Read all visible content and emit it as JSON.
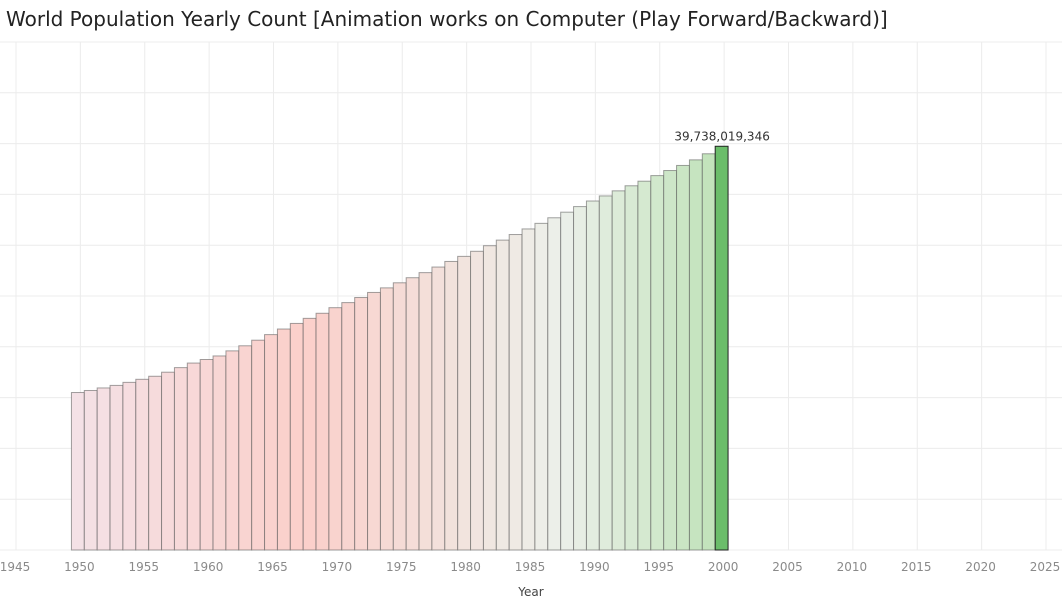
{
  "title": "World Population Yearly Count [Animation works on Computer (Play Forward/Backward)]",
  "chart_data": {
    "type": "bar",
    "xlabel": "Year",
    "ylabel": "",
    "x_ticks": [
      1945,
      1950,
      1955,
      1960,
      1965,
      1970,
      1975,
      1980,
      1985,
      1990,
      1995,
      2000,
      2005,
      2010,
      2015,
      2020,
      2025
    ],
    "xlim": [
      1945,
      2025
    ],
    "ylim": [
      0,
      50000000000
    ],
    "grid": true,
    "categories": [
      1950,
      1951,
      1952,
      1953,
      1954,
      1955,
      1956,
      1957,
      1958,
      1959,
      1960,
      1961,
      1962,
      1963,
      1964,
      1965,
      1966,
      1967,
      1968,
      1969,
      1970,
      1971,
      1972,
      1973,
      1974,
      1975,
      1976,
      1977,
      1978,
      1979,
      1980,
      1981,
      1982,
      1983,
      1984,
      1985,
      1986,
      1987,
      1988,
      1989,
      1990,
      1991,
      1992,
      1993,
      1994,
      1995,
      1996,
      1997,
      1998,
      1999,
      2000
    ],
    "values": [
      15500000000,
      15700000000,
      15950000000,
      16200000000,
      16500000000,
      16800000000,
      17100000000,
      17500000000,
      17950000000,
      18400000000,
      18750000000,
      19100000000,
      19600000000,
      20100000000,
      20650000000,
      21200000000,
      21750000000,
      22300000000,
      22800000000,
      23300000000,
      23850000000,
      24350000000,
      24850000000,
      25350000000,
      25800000000,
      26300000000,
      26800000000,
      27300000000,
      27850000000,
      28400000000,
      28900000000,
      29400000000,
      29950000000,
      30500000000,
      31050000000,
      31600000000,
      32150000000,
      32700000000,
      33250000000,
      33800000000,
      34350000000,
      34850000000,
      35350000000,
      35850000000,
      36300000000,
      36850000000,
      37350000000,
      37850000000,
      38400000000,
      39000000000,
      39738019346
    ],
    "highlight_label": "39,738,019,346",
    "colors": {
      "start": "#f4e1e6",
      "mid": "#fbcfca",
      "transition": "#ecf0ea",
      "end": "#bfe2b8",
      "highlight": "#6bbd6a",
      "grid": "#ececec",
      "bar_edge": "#555555"
    }
  }
}
